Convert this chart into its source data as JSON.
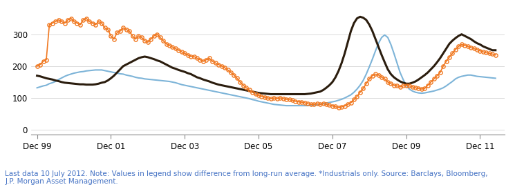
{
  "footnote": "Last data 10 July 2012. Note: Values in legend show difference from long-run average. *Industrials only. Source: Barclays, Bloomberg,\nJ.P. Morgan Asset Management.",
  "footnote_color": "#4472c4",
  "footnote_fontsize": 7.5,
  "xtick_labels": [
    "Dec 99",
    "Dec 01",
    "Dec 03",
    "Dec 05",
    "Dec 07",
    "Dec 09",
    "Dec 11"
  ],
  "xtick_positions": [
    0,
    24,
    48,
    72,
    96,
    120,
    144
  ],
  "ytick_labels": [
    "0",
    "100",
    "200",
    "300"
  ],
  "ytick_positions": [
    0,
    100,
    200,
    300
  ],
  "ylim": [
    -15,
    390
  ],
  "xlim": [
    -2,
    152
  ],
  "background_color": "#ffffff",
  "line_orange_color": "#f07820",
  "line_dark_color": "#2b1d0e",
  "line_blue_color": "#7db4d8",
  "orange_marker": "o",
  "orange_markersize": 3.8,
  "orange_linewidth": 1.2,
  "dark_linewidth": 2.2,
  "blue_linewidth": 1.5,
  "n_points": 150,
  "orange_data": [
    200,
    205,
    215,
    220,
    330,
    335,
    340,
    345,
    340,
    335,
    345,
    350,
    340,
    335,
    330,
    345,
    350,
    340,
    335,
    330,
    340,
    335,
    320,
    315,
    295,
    285,
    305,
    310,
    320,
    315,
    310,
    295,
    285,
    295,
    290,
    280,
    275,
    285,
    295,
    300,
    290,
    280,
    270,
    265,
    260,
    255,
    250,
    245,
    240,
    235,
    230,
    230,
    225,
    220,
    215,
    220,
    225,
    215,
    210,
    205,
    200,
    195,
    188,
    180,
    172,
    162,
    150,
    140,
    132,
    125,
    118,
    112,
    108,
    105,
    102,
    100,
    98,
    100,
    98,
    100,
    98,
    96,
    95,
    93,
    90,
    88,
    87,
    85,
    82,
    80,
    80,
    82,
    80,
    82,
    80,
    78,
    75,
    73,
    70,
    72,
    75,
    80,
    85,
    95,
    105,
    118,
    130,
    145,
    160,
    170,
    175,
    172,
    165,
    160,
    150,
    145,
    140,
    138,
    135,
    138,
    140,
    138,
    135,
    132,
    130,
    128,
    130,
    140,
    150,
    160,
    170,
    180,
    200,
    215,
    228,
    240,
    252,
    262,
    268,
    265,
    262,
    258,
    255,
    252,
    248,
    245,
    242,
    240,
    238,
    235
  ],
  "dark_data": [
    170,
    168,
    165,
    162,
    160,
    158,
    155,
    153,
    150,
    148,
    147,
    146,
    145,
    144,
    143,
    143,
    142,
    142,
    142,
    143,
    145,
    148,
    150,
    155,
    162,
    170,
    180,
    190,
    200,
    205,
    210,
    215,
    220,
    225,
    228,
    230,
    228,
    225,
    222,
    218,
    215,
    210,
    205,
    200,
    195,
    192,
    188,
    185,
    182,
    178,
    175,
    170,
    165,
    162,
    158,
    155,
    152,
    148,
    145,
    142,
    140,
    138,
    136,
    134,
    132,
    130,
    128,
    126,
    124,
    122,
    120,
    118,
    116,
    115,
    114,
    113,
    112,
    112,
    112,
    112,
    112,
    112,
    112,
    112,
    112,
    112,
    112,
    112,
    113,
    114,
    116,
    118,
    120,
    125,
    132,
    140,
    150,
    165,
    185,
    210,
    240,
    275,
    310,
    335,
    350,
    355,
    352,
    345,
    330,
    310,
    285,
    260,
    235,
    212,
    190,
    175,
    165,
    158,
    152,
    148,
    145,
    145,
    148,
    152,
    158,
    165,
    172,
    180,
    190,
    200,
    212,
    225,
    240,
    255,
    270,
    280,
    288,
    295,
    300,
    295,
    290,
    285,
    278,
    272,
    268,
    262,
    258,
    254,
    250,
    250
  ],
  "blue_data": [
    132,
    135,
    138,
    140,
    145,
    148,
    152,
    158,
    163,
    168,
    172,
    175,
    178,
    180,
    182,
    183,
    185,
    186,
    187,
    188,
    188,
    188,
    186,
    184,
    182,
    180,
    178,
    176,
    175,
    172,
    170,
    168,
    165,
    163,
    162,
    160,
    159,
    158,
    157,
    156,
    155,
    154,
    153,
    152,
    150,
    148,
    145,
    142,
    140,
    138,
    136,
    134,
    132,
    130,
    128,
    126,
    124,
    122,
    120,
    118,
    116,
    114,
    112,
    110,
    108,
    106,
    104,
    102,
    100,
    98,
    95,
    93,
    90,
    88,
    86,
    84,
    82,
    80,
    79,
    78,
    77,
    76,
    76,
    76,
    76,
    76,
    76,
    76,
    76,
    77,
    78,
    79,
    80,
    82,
    84,
    86,
    88,
    90,
    93,
    96,
    100,
    105,
    110,
    118,
    128,
    140,
    155,
    175,
    198,
    222,
    248,
    272,
    290,
    298,
    290,
    268,
    240,
    210,
    180,
    158,
    140,
    128,
    122,
    118,
    116,
    115,
    116,
    118,
    120,
    122,
    125,
    128,
    132,
    138,
    145,
    152,
    160,
    165,
    168,
    170,
    172,
    172,
    170,
    168,
    167,
    166,
    165,
    164,
    163,
    162
  ]
}
